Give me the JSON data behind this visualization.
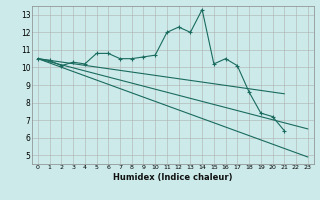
{
  "xlabel": "Humidex (Indice chaleur)",
  "bg_color": "#cceaea",
  "grid_color": "#b0b0b0",
  "line_color": "#1a6b5e",
  "xlim": [
    -0.5,
    23.5
  ],
  "ylim": [
    4.5,
    13.5
  ],
  "xticks": [
    0,
    1,
    2,
    3,
    4,
    5,
    6,
    7,
    8,
    9,
    10,
    11,
    12,
    13,
    14,
    15,
    16,
    17,
    18,
    19,
    20,
    21,
    22,
    23
  ],
  "yticks": [
    5,
    6,
    7,
    8,
    9,
    10,
    11,
    12,
    13
  ],
  "series1_x": [
    0,
    1,
    2,
    3,
    4,
    5,
    6,
    7,
    8,
    9,
    10,
    11,
    12,
    13,
    14,
    15,
    16,
    17,
    18,
    19,
    20,
    21
  ],
  "series1_y": [
    10.5,
    10.4,
    10.1,
    10.3,
    10.2,
    10.8,
    10.8,
    10.5,
    10.5,
    10.6,
    10.7,
    12.0,
    12.3,
    12.0,
    13.3,
    10.2,
    10.5,
    10.1,
    8.6,
    7.4,
    7.2,
    6.4
  ],
  "series2_x": [
    0,
    23
  ],
  "series2_y": [
    10.5,
    4.9
  ],
  "series3_x": [
    0,
    23
  ],
  "series3_y": [
    10.5,
    6.5
  ],
  "series4_x": [
    0,
    21
  ],
  "series4_y": [
    10.5,
    8.5
  ]
}
